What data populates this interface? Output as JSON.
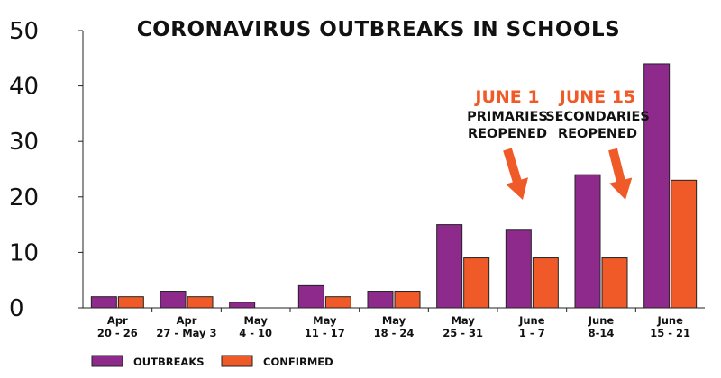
{
  "chart_data": {
    "type": "bar",
    "title": "CORONAVIRUS OUTBREAKS IN SCHOOLS",
    "xlabel": "",
    "ylabel": "",
    "ylim": [
      0,
      50
    ],
    "yticks": [
      "0",
      "10",
      "20",
      "30",
      "40",
      "50"
    ],
    "grid": false,
    "legend_position": "bottom-left",
    "categories": [
      [
        "Apr",
        "20 - 26"
      ],
      [
        "Apr",
        "27 - May 3"
      ],
      [
        "May",
        "4 - 10"
      ],
      [
        "May",
        "11 - 17"
      ],
      [
        "May",
        "18 - 24"
      ],
      [
        "May",
        "25 - 31"
      ],
      [
        "June",
        "1 - 7"
      ],
      [
        "June",
        "8-14"
      ],
      [
        "June",
        "15 - 21"
      ]
    ],
    "series": [
      {
        "name": "OUTBREAKS",
        "color": "#8e2a8c",
        "values": [
          2,
          3,
          1,
          4,
          3,
          15,
          14,
          24,
          44
        ]
      },
      {
        "name": "CONFIRMED",
        "color": "#f05a28",
        "values": [
          2,
          2,
          0,
          2,
          3,
          9,
          9,
          9,
          23
        ]
      }
    ],
    "annotations": [
      {
        "date": "JUNE 1",
        "lines": [
          "PRIMARIES",
          "REOPENED"
        ],
        "category_index": 6
      },
      {
        "date": "JUNE 15",
        "lines": [
          "SECONDARIES",
          "REOPENED"
        ],
        "category_index": 7
      }
    ],
    "annotation_color": "#f05a28"
  }
}
